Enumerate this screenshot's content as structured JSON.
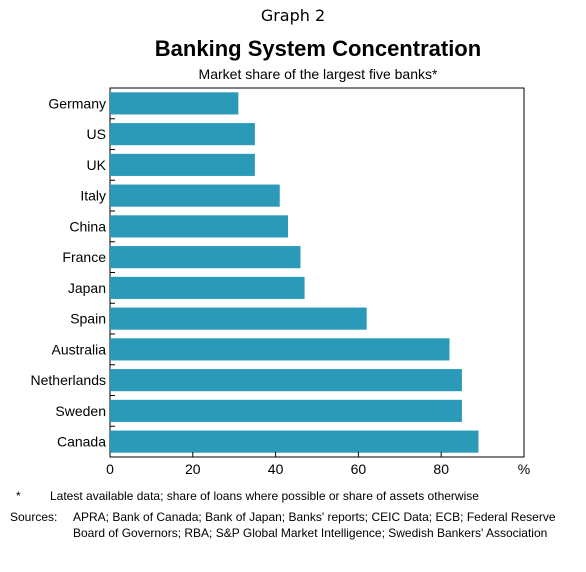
{
  "header": {
    "graph_label": "Graph 2",
    "title": "Banking System Concentration",
    "subtitle": "Market share of the largest five banks*"
  },
  "chart_data": {
    "type": "bar",
    "orientation": "horizontal",
    "categories": [
      "Germany",
      "US",
      "UK",
      "Italy",
      "China",
      "France",
      "Japan",
      "Spain",
      "Australia",
      "Netherlands",
      "Sweden",
      "Canada"
    ],
    "values": [
      31,
      35,
      35,
      41,
      43,
      46,
      47,
      62,
      82,
      85,
      85,
      89
    ],
    "xlim": [
      0,
      100
    ],
    "xticks": [
      "0",
      "20",
      "40",
      "60",
      "80"
    ],
    "xunit": "%",
    "bar_color": "#2a9ab8",
    "grid": false
  },
  "notes": {
    "star_key": "*",
    "star_text": "Latest available data; share of loans where possible or share of assets otherwise",
    "sources_key": "Sources:",
    "sources_text": "APRA; Bank of Canada; Bank of Japan; Banks' reports; CEIC Data; ECB; Federal Reserve Board of Governors; RBA; S&P Global Market Intelligence; Swedish Bankers' Association"
  }
}
